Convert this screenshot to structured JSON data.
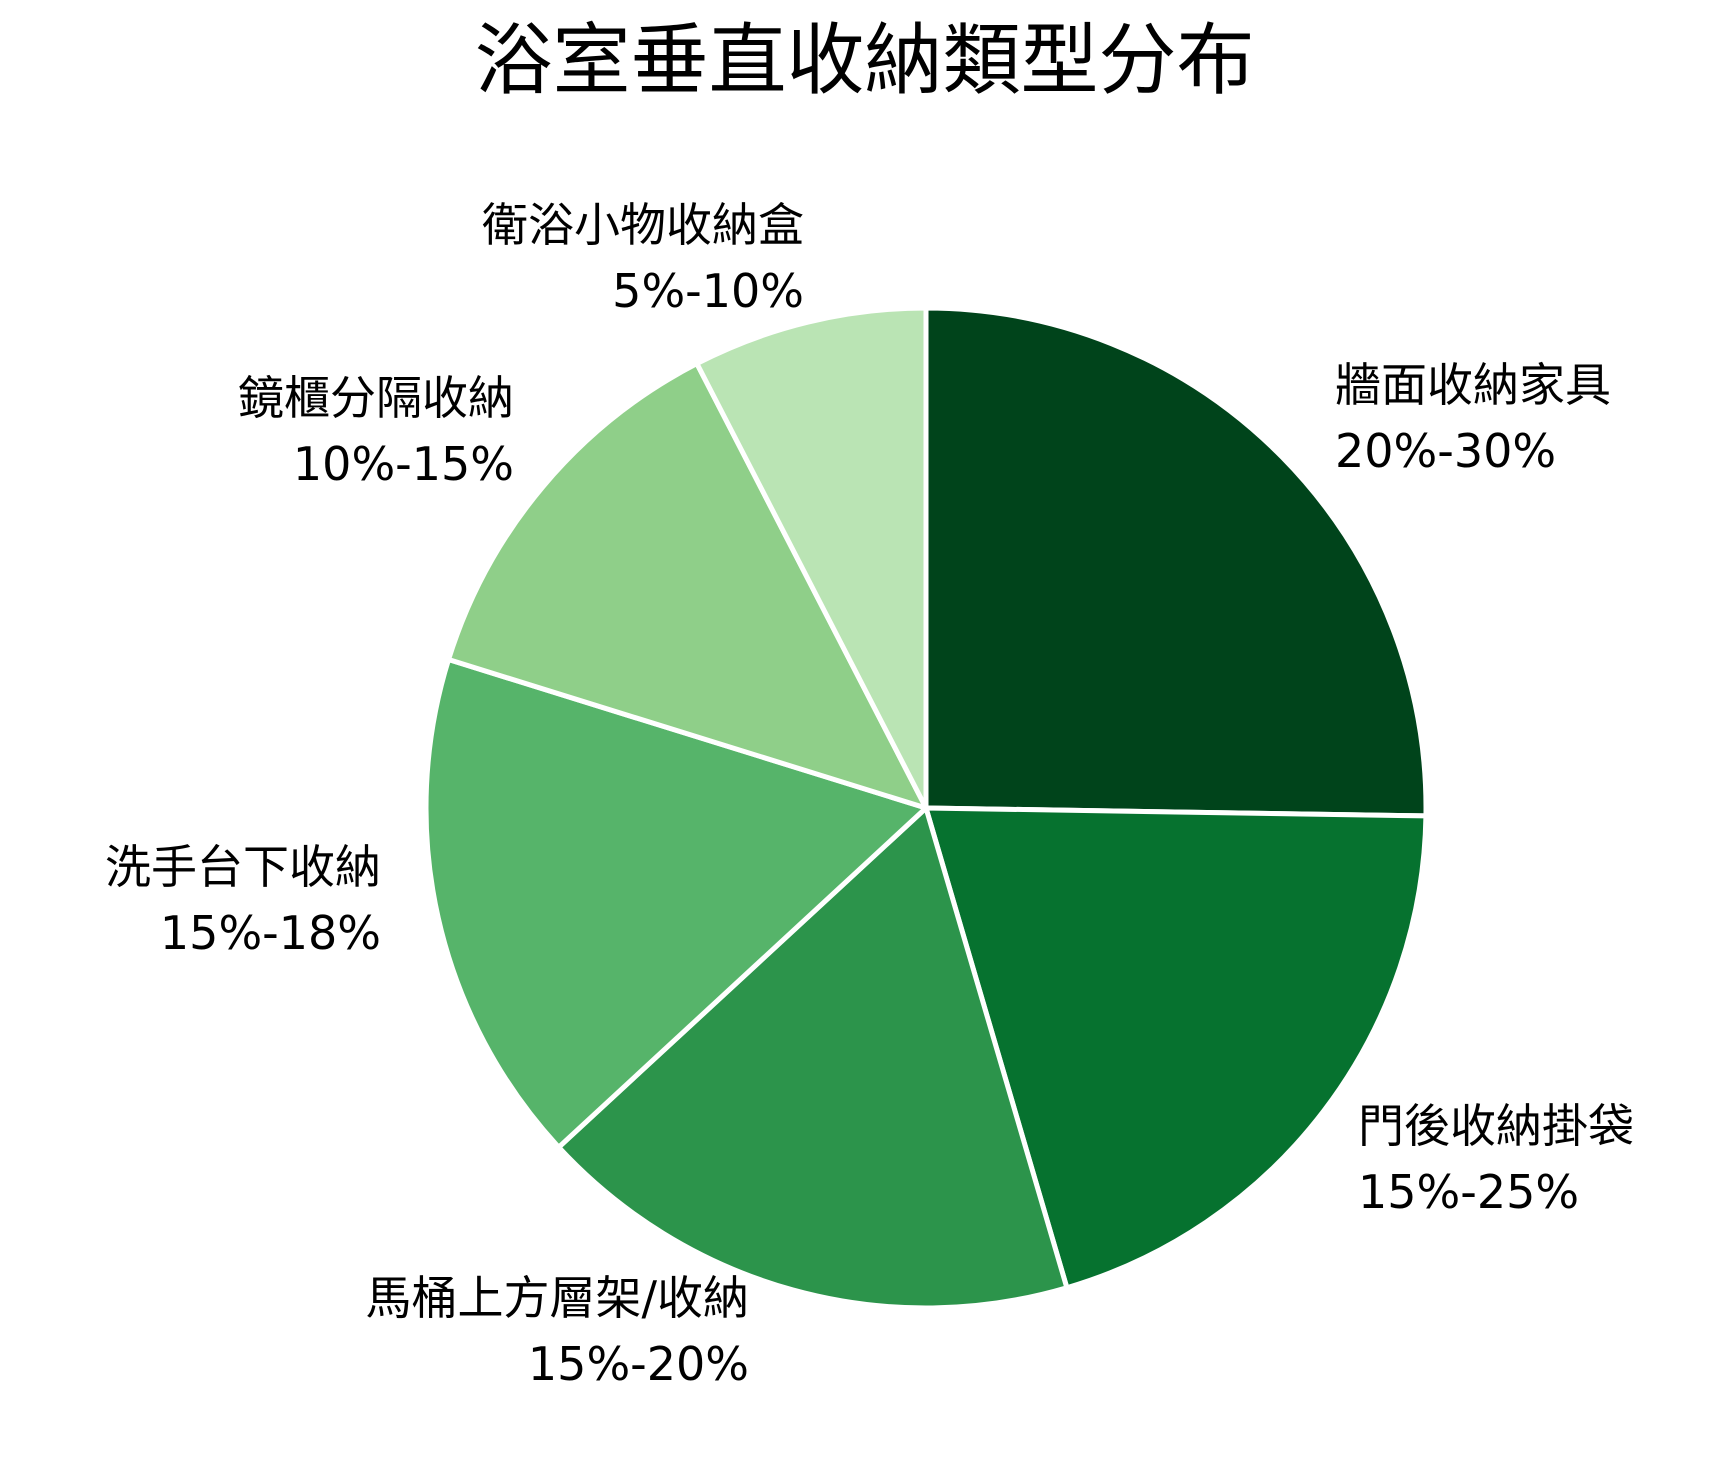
{
  "title": "浴室垂直收納類型分布",
  "chart_data": {
    "type": "pie",
    "title": "浴室垂直收納類型分布",
    "start_angle_deg": 90,
    "direction": "clockwise",
    "categories": [
      "牆面收納家具",
      "門後收納掛袋",
      "馬桶上方層架/收納",
      "洗手台下收納",
      "鏡櫃分隔收納",
      "衛浴小物收納盒"
    ],
    "values": [
      25,
      20,
      17.5,
      16.5,
      12.5,
      7.5
    ],
    "range_labels": [
      "20%-30%",
      "15%-25%",
      "15%-20%",
      "15%-18%",
      "10%-15%",
      "5%-10%"
    ],
    "colors": [
      "#00441b",
      "#06722f",
      "#2c944b",
      "#56b46a",
      "#8fcf89",
      "#bae4b4"
    ],
    "legend": "none",
    "labels_position": "outside"
  },
  "slices": [
    {
      "name": "牆面收納家具",
      "range": "20%-30%"
    },
    {
      "name": "門後收納掛袋",
      "range": "15%-25%"
    },
    {
      "name": "馬桶上方層架/收納",
      "range": "15%-20%"
    },
    {
      "name": "洗手台下收納",
      "range": "15%-18%"
    },
    {
      "name": "鏡櫃分隔收納",
      "range": "10%-15%"
    },
    {
      "name": "衛浴小物收納盒",
      "range": "5%-10%"
    }
  ]
}
